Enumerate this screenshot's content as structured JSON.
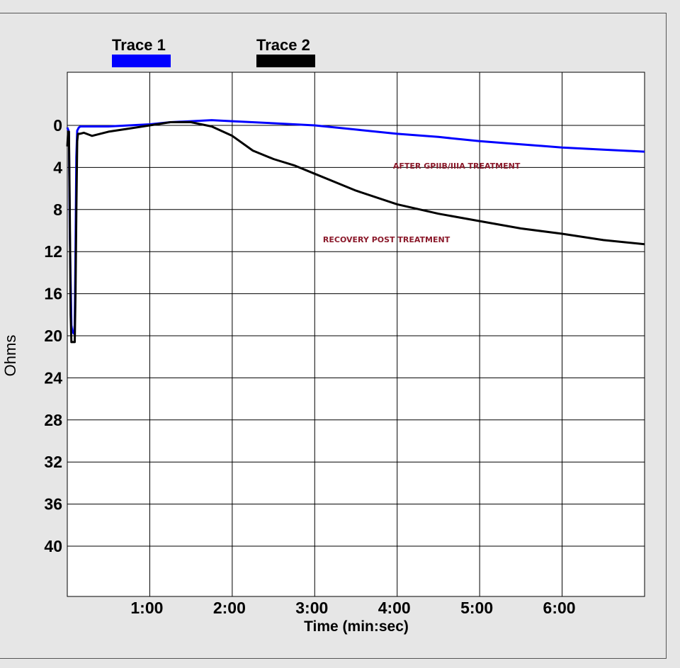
{
  "chart_data": {
    "type": "line",
    "xlabel": "Time (min:sec)",
    "ylabel": "Ohms",
    "xlim": [
      0,
      7
    ],
    "ylim": [
      -5,
      45
    ],
    "y_inverted": true,
    "x_ticks": [
      {
        "value": 1,
        "label": "1:00"
      },
      {
        "value": 2,
        "label": "2:00"
      },
      {
        "value": 3,
        "label": "3:00"
      },
      {
        "value": 4,
        "label": "4:00"
      },
      {
        "value": 5,
        "label": "5:00"
      },
      {
        "value": 6,
        "label": "6:00"
      }
    ],
    "y_ticks": [
      0,
      4,
      8,
      12,
      16,
      20,
      24,
      28,
      32,
      36,
      40
    ],
    "grid": true,
    "legend_position": "top-left",
    "series": [
      {
        "name": "Trace 1",
        "color": "#0000ff",
        "x": [
          0.0,
          0.02,
          0.03,
          0.05,
          0.06,
          0.08,
          0.09,
          0.1,
          0.11,
          0.12,
          0.14,
          0.16,
          0.25,
          0.5,
          0.75,
          1.0,
          1.25,
          1.5,
          1.75,
          2.0,
          2.5,
          3.0,
          3.5,
          4.0,
          4.5,
          5.0,
          5.5,
          6.0,
          6.5,
          7.0
        ],
        "y": [
          0.2,
          0.6,
          10,
          19,
          19.6,
          19.8,
          19,
          12,
          3,
          0.5,
          0.2,
          0.1,
          0.1,
          0.1,
          0.0,
          -0.1,
          -0.3,
          -0.4,
          -0.5,
          -0.4,
          -0.2,
          0.0,
          0.4,
          0.8,
          1.1,
          1.5,
          1.8,
          2.1,
          2.3,
          2.5
        ]
      },
      {
        "name": "Trace 2",
        "color": "#000000",
        "x": [
          0.0,
          0.01,
          0.02,
          0.03,
          0.04,
          0.05,
          0.06,
          0.08,
          0.09,
          0.1,
          0.11,
          0.12,
          0.13,
          0.15,
          0.2,
          0.3,
          0.5,
          0.75,
          1.0,
          1.25,
          1.5,
          1.75,
          2.0,
          2.25,
          2.5,
          2.75,
          3.0,
          3.5,
          4.0,
          4.5,
          5.0,
          5.5,
          6.0,
          6.5,
          7.0
        ],
        "y": [
          2,
          0.6,
          0.6,
          8,
          18,
          20.6,
          20.6,
          20.6,
          20.6,
          16,
          8,
          1.5,
          0.8,
          0.8,
          0.7,
          1.0,
          0.6,
          0.3,
          0.0,
          -0.3,
          -0.3,
          0.1,
          1.0,
          2.4,
          3.2,
          3.8,
          4.6,
          6.2,
          7.5,
          8.4,
          9.1,
          9.8,
          10.3,
          10.9,
          11.3
        ]
      }
    ],
    "annotations": [
      {
        "text": "AFTER GPIIB/IIIA TREATMENT",
        "x": 3.95,
        "y": 4.1,
        "color": "#8b1a2b"
      },
      {
        "text": "RECOVERY POST TREATMENT",
        "x": 3.1,
        "y": 11.1,
        "color": "#8b1a2b"
      }
    ]
  }
}
